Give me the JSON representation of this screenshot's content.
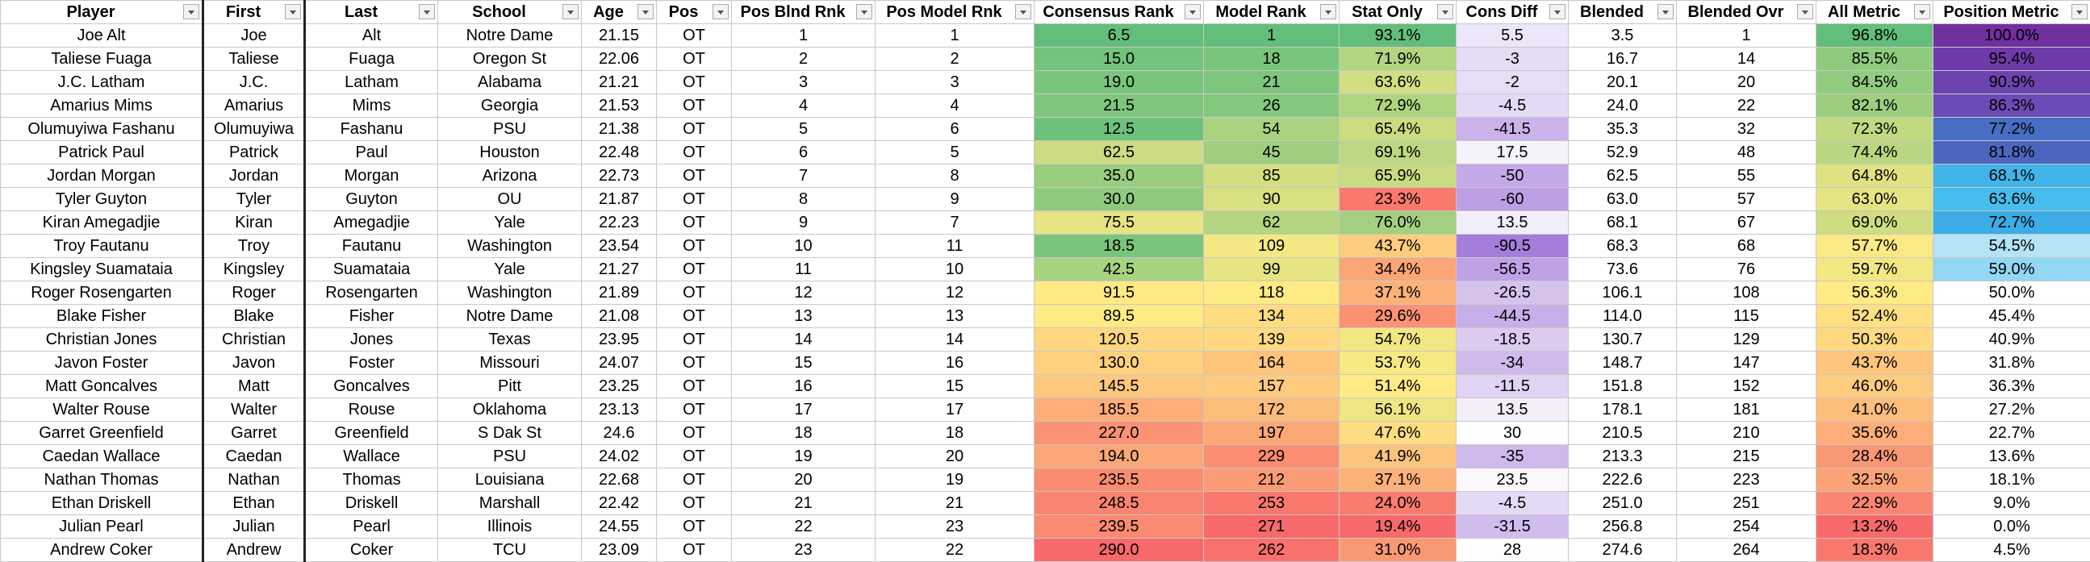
{
  "table": {
    "columns": [
      "Player",
      "First",
      "Last",
      "School",
      "Age",
      "Pos",
      "Pos Blnd Rnk",
      "Pos Model Rnk",
      "Consensus Rank",
      "Model Rank",
      "Stat Only",
      "Cons Diff",
      "Blended",
      "Blended Ovr",
      "All Metric",
      "Position Metric"
    ],
    "rows": [
      [
        "Joe Alt",
        "Joe",
        "Alt",
        "Notre Dame",
        "21.15",
        "OT",
        "1",
        "1",
        "6.5",
        "1",
        "93.1%",
        "5.5",
        "3.5",
        "1",
        "96.8%",
        "100.0%"
      ],
      [
        "Taliese Fuaga",
        "Taliese",
        "Fuaga",
        "Oregon St",
        "22.06",
        "OT",
        "2",
        "2",
        "15.0",
        "18",
        "71.9%",
        "-3",
        "16.7",
        "14",
        "85.5%",
        "95.4%"
      ],
      [
        "J.C. Latham",
        "J.C.",
        "Latham",
        "Alabama",
        "21.21",
        "OT",
        "3",
        "3",
        "19.0",
        "21",
        "63.6%",
        "-2",
        "20.1",
        "20",
        "84.5%",
        "90.9%"
      ],
      [
        "Amarius Mims",
        "Amarius",
        "Mims",
        "Georgia",
        "21.53",
        "OT",
        "4",
        "4",
        "21.5",
        "26",
        "72.9%",
        "-4.5",
        "24.0",
        "22",
        "82.1%",
        "86.3%"
      ],
      [
        "Olumuyiwa Fashanu",
        "Olumuyiwa",
        "Fashanu",
        "PSU",
        "21.38",
        "OT",
        "5",
        "6",
        "12.5",
        "54",
        "65.4%",
        "-41.5",
        "35.3",
        "32",
        "72.3%",
        "77.2%"
      ],
      [
        "Patrick Paul",
        "Patrick",
        "Paul",
        "Houston",
        "22.48",
        "OT",
        "6",
        "5",
        "62.5",
        "45",
        "69.1%",
        "17.5",
        "52.9",
        "48",
        "74.4%",
        "81.8%"
      ],
      [
        "Jordan Morgan",
        "Jordan",
        "Morgan",
        "Arizona",
        "22.73",
        "OT",
        "7",
        "8",
        "35.0",
        "85",
        "65.9%",
        "-50",
        "62.5",
        "55",
        "64.8%",
        "68.1%"
      ],
      [
        "Tyler Guyton",
        "Tyler",
        "Guyton",
        "OU",
        "21.87",
        "OT",
        "8",
        "9",
        "30.0",
        "90",
        "23.3%",
        "-60",
        "63.0",
        "57",
        "63.0%",
        "63.6%"
      ],
      [
        "Kiran Amegadjie",
        "Kiran",
        "Amegadjie",
        "Yale",
        "22.23",
        "OT",
        "9",
        "7",
        "75.5",
        "62",
        "76.0%",
        "13.5",
        "68.1",
        "67",
        "69.0%",
        "72.7%"
      ],
      [
        "Troy Fautanu",
        "Troy",
        "Fautanu",
        "Washington",
        "23.54",
        "OT",
        "10",
        "11",
        "18.5",
        "109",
        "43.7%",
        "-90.5",
        "68.3",
        "68",
        "57.7%",
        "54.5%"
      ],
      [
        "Kingsley Suamataia",
        "Kingsley",
        "Suamataia",
        "Yale",
        "21.27",
        "OT",
        "11",
        "10",
        "42.5",
        "99",
        "34.4%",
        "-56.5",
        "73.6",
        "76",
        "59.7%",
        "59.0%"
      ],
      [
        "Roger Rosengarten",
        "Roger",
        "Rosengarten",
        "Washington",
        "21.89",
        "OT",
        "12",
        "12",
        "91.5",
        "118",
        "37.1%",
        "-26.5",
        "106.1",
        "108",
        "56.3%",
        "50.0%"
      ],
      [
        "Blake Fisher",
        "Blake",
        "Fisher",
        "Notre Dame",
        "21.08",
        "OT",
        "13",
        "13",
        "89.5",
        "134",
        "29.6%",
        "-44.5",
        "114.0",
        "115",
        "52.4%",
        "45.4%"
      ],
      [
        "Christian Jones",
        "Christian",
        "Jones",
        "Texas",
        "23.95",
        "OT",
        "14",
        "14",
        "120.5",
        "139",
        "54.7%",
        "-18.5",
        "130.7",
        "129",
        "50.3%",
        "40.9%"
      ],
      [
        "Javon Foster",
        "Javon",
        "Foster",
        "Missouri",
        "24.07",
        "OT",
        "15",
        "16",
        "130.0",
        "164",
        "53.7%",
        "-34",
        "148.7",
        "147",
        "43.7%",
        "31.8%"
      ],
      [
        "Matt Goncalves",
        "Matt",
        "Goncalves",
        "Pitt",
        "23.25",
        "OT",
        "16",
        "15",
        "145.5",
        "157",
        "51.4%",
        "-11.5",
        "151.8",
        "152",
        "46.0%",
        "36.3%"
      ],
      [
        "Walter Rouse",
        "Walter",
        "Rouse",
        "Oklahoma",
        "23.13",
        "OT",
        "17",
        "17",
        "185.5",
        "172",
        "56.1%",
        "13.5",
        "178.1",
        "181",
        "41.0%",
        "27.2%"
      ],
      [
        "Garret Greenfield",
        "Garret",
        "Greenfield",
        "S Dak St",
        "24.6",
        "OT",
        "18",
        "18",
        "227.0",
        "197",
        "47.6%",
        "30",
        "210.5",
        "210",
        "35.6%",
        "22.7%"
      ],
      [
        "Caedan Wallace",
        "Caedan",
        "Wallace",
        "PSU",
        "24.02",
        "OT",
        "19",
        "20",
        "194.0",
        "229",
        "41.9%",
        "-35",
        "213.3",
        "215",
        "28.4%",
        "13.6%"
      ],
      [
        "Nathan Thomas",
        "Nathan",
        "Thomas",
        "Louisiana",
        "22.68",
        "OT",
        "20",
        "19",
        "235.5",
        "212",
        "37.1%",
        "23.5",
        "222.6",
        "223",
        "32.5%",
        "18.1%"
      ],
      [
        "Ethan Driskell",
        "Ethan",
        "Driskell",
        "Marshall",
        "22.42",
        "OT",
        "21",
        "21",
        "248.5",
        "253",
        "24.0%",
        "-4.5",
        "251.0",
        "251",
        "22.9%",
        "9.0%"
      ],
      [
        "Julian Pearl",
        "Julian",
        "Pearl",
        "Illinois",
        "24.55",
        "OT",
        "22",
        "23",
        "239.5",
        "271",
        "19.4%",
        "-31.5",
        "256.8",
        "254",
        "13.2%",
        "0.0%"
      ],
      [
        "Andrew Coker",
        "Andrew",
        "Coker",
        "TCU",
        "23.09",
        "OT",
        "23",
        "22",
        "290.0",
        "262",
        "31.0%",
        "28",
        "274.6",
        "264",
        "18.3%",
        "4.5%"
      ]
    ]
  }
}
